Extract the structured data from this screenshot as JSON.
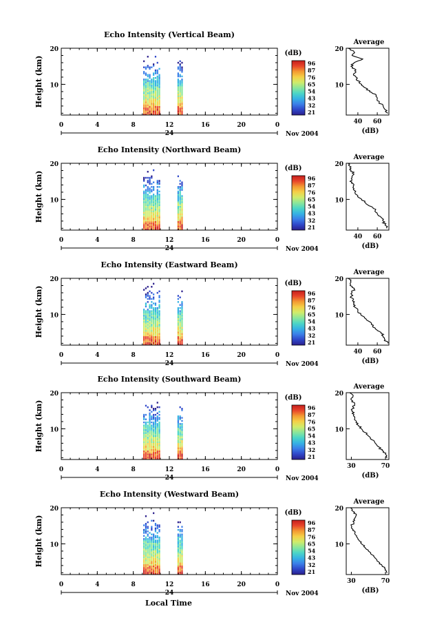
{
  "figure": {
    "xlabel": "Local Time",
    "date_label": "Nov 2004",
    "day_label": "24",
    "unit_label": "(dB)",
    "avg_title": "Average",
    "colorbar_ticks": [
      "96",
      "87",
      "76",
      "65",
      "54",
      "43",
      "32",
      "21"
    ]
  },
  "chart_data": [
    {
      "type": "heatmap",
      "title": "Echo Intensity (Vertical Beam)",
      "ylabel": "Height (km)",
      "x_ticks": [
        "0",
        "4",
        "8",
        "12",
        "16",
        "20",
        "0"
      ],
      "y_ticks": [
        "20",
        "10"
      ],
      "xlim": [
        0,
        24
      ],
      "ylim": [
        1.5,
        20
      ],
      "colorbar_ticks": [
        "96",
        "87",
        "76",
        "65",
        "54",
        "43",
        "32",
        "21"
      ],
      "active_segments_hours": [
        [
          9.1,
          10.9
        ],
        [
          12.9,
          13.5
        ]
      ],
      "avg_profile": {
        "title": "Average",
        "xlabel": "(dB)",
        "xticks": [
          "40",
          "60"
        ],
        "yticks": [
          "20",
          "10"
        ],
        "xlim": [
          28,
          72
        ],
        "ylim": [
          1.5,
          20
        ],
        "heights_km": [
          2,
          3,
          4,
          5,
          6,
          7,
          8,
          9,
          10,
          11,
          12,
          13,
          14,
          15,
          16,
          17,
          18,
          19,
          20
        ],
        "values_db": [
          71,
          68,
          66,
          62,
          60,
          59,
          52,
          48,
          44,
          40,
          38,
          36,
          38,
          33,
          36,
          45,
          34,
          36,
          30
        ]
      }
    },
    {
      "type": "heatmap",
      "title": "Echo Intensity (Northward Beam)",
      "ylabel": "Height (km)",
      "x_ticks": [
        "0",
        "4",
        "8",
        "12",
        "16",
        "20",
        "0"
      ],
      "y_ticks": [
        "20",
        "10"
      ],
      "xlim": [
        0,
        24
      ],
      "ylim": [
        1.5,
        20
      ],
      "colorbar_ticks": [
        "96",
        "87",
        "76",
        "65",
        "54",
        "43",
        "32",
        "21"
      ],
      "active_segments_hours": [
        [
          9.1,
          10.9
        ],
        [
          12.9,
          13.5
        ]
      ],
      "avg_profile": {
        "title": "Average",
        "xlabel": "(dB)",
        "xticks": [
          "40",
          "60"
        ],
        "yticks": [
          "20",
          "10"
        ],
        "xlim": [
          28,
          72
        ],
        "ylim": [
          1.5,
          20
        ],
        "heights_km": [
          2,
          3,
          4,
          5,
          6,
          7,
          8,
          9,
          10,
          11,
          12,
          13,
          14,
          15,
          16,
          17,
          18,
          19,
          20
        ],
        "values_db": [
          70,
          68,
          66,
          64,
          60,
          58,
          54,
          48,
          44,
          40,
          37,
          36,
          36,
          32,
          34,
          36,
          33,
          33,
          30
        ]
      }
    },
    {
      "type": "heatmap",
      "title": "Echo Intensity (Eastward Beam)",
      "ylabel": "Height (km)",
      "x_ticks": [
        "0",
        "4",
        "8",
        "12",
        "16",
        "20",
        "0"
      ],
      "y_ticks": [
        "20",
        "10"
      ],
      "xlim": [
        0,
        24
      ],
      "ylim": [
        1.5,
        20
      ],
      "colorbar_ticks": [
        "96",
        "87",
        "76",
        "65",
        "54",
        "43",
        "32",
        "21"
      ],
      "active_segments_hours": [
        [
          9.1,
          10.9
        ],
        [
          12.9,
          13.5
        ]
      ],
      "avg_profile": {
        "title": "Average",
        "xlabel": "(dB)",
        "xticks": [
          "40",
          "60"
        ],
        "yticks": [
          "20",
          "10"
        ],
        "xlim": [
          28,
          72
        ],
        "ylim": [
          1.5,
          20
        ],
        "heights_km": [
          2,
          3,
          4,
          5,
          6,
          7,
          8,
          9,
          10,
          11,
          12,
          13,
          14,
          15,
          16,
          17,
          18,
          19,
          20
        ],
        "values_db": [
          71,
          68,
          66,
          64,
          58,
          56,
          52,
          47,
          43,
          40,
          37,
          36,
          35,
          33,
          34,
          36,
          32,
          33,
          30
        ]
      }
    },
    {
      "type": "heatmap",
      "title": "Echo Intensity (Southward Beam)",
      "ylabel": "Height (km)",
      "x_ticks": [
        "0",
        "4",
        "8",
        "12",
        "16",
        "20",
        "0"
      ],
      "y_ticks": [
        "20",
        "10"
      ],
      "xlim": [
        0,
        24
      ],
      "ylim": [
        1.5,
        20
      ],
      "colorbar_ticks": [
        "96",
        "87",
        "76",
        "65",
        "54",
        "43",
        "32",
        "21"
      ],
      "active_segments_hours": [
        [
          9.1,
          10.9
        ],
        [
          12.9,
          13.5
        ]
      ],
      "avg_profile": {
        "title": "Average",
        "xlabel": "(dB)",
        "xticks": [
          "30",
          "70"
        ],
        "yticks": [
          "20",
          "10"
        ],
        "xlim": [
          24,
          74
        ],
        "ylim": [
          1.5,
          20
        ],
        "heights_km": [
          2,
          3,
          4,
          5,
          6,
          7,
          8,
          9,
          10,
          11,
          12,
          13,
          14,
          15,
          16,
          17,
          18,
          19,
          20
        ],
        "values_db": [
          72,
          70,
          66,
          62,
          58,
          54,
          50,
          46,
          42,
          38,
          36,
          34,
          33,
          31,
          32,
          34,
          30,
          32,
          28
        ]
      }
    },
    {
      "type": "heatmap",
      "title": "Echo Intensity (Westward Beam)",
      "ylabel": "Height (km)",
      "x_ticks": [
        "0",
        "4",
        "8",
        "12",
        "16",
        "20",
        "0"
      ],
      "y_ticks": [
        "20",
        "10"
      ],
      "xlim": [
        0,
        24
      ],
      "ylim": [
        1.5,
        20
      ],
      "colorbar_ticks": [
        "96",
        "87",
        "76",
        "65",
        "54",
        "43",
        "32",
        "21"
      ],
      "active_segments_hours": [
        [
          9.1,
          10.9
        ],
        [
          12.9,
          13.5
        ]
      ],
      "avg_profile": {
        "title": "Average",
        "xlabel": "(dB)",
        "xticks": [
          "30",
          "70"
        ],
        "yticks": [
          "20",
          "10"
        ],
        "xlim": [
          24,
          74
        ],
        "ylim": [
          1.5,
          20
        ],
        "heights_km": [
          2,
          3,
          4,
          5,
          6,
          7,
          8,
          9,
          10,
          11,
          12,
          13,
          14,
          15,
          16,
          17,
          18,
          19,
          20
        ],
        "values_db": [
          72,
          70,
          66,
          62,
          58,
          54,
          50,
          46,
          42,
          39,
          36,
          34,
          32,
          30,
          33,
          34,
          36,
          32,
          29
        ]
      }
    }
  ],
  "colors": {
    "colormap": [
      "#2b1f8c",
      "#2f47c9",
      "#3b7ee8",
      "#36b2e4",
      "#4cd6c6",
      "#8ce69a",
      "#d0ec6a",
      "#f5d047",
      "#f39a32",
      "#e8452a",
      "#c41d1d"
    ]
  }
}
